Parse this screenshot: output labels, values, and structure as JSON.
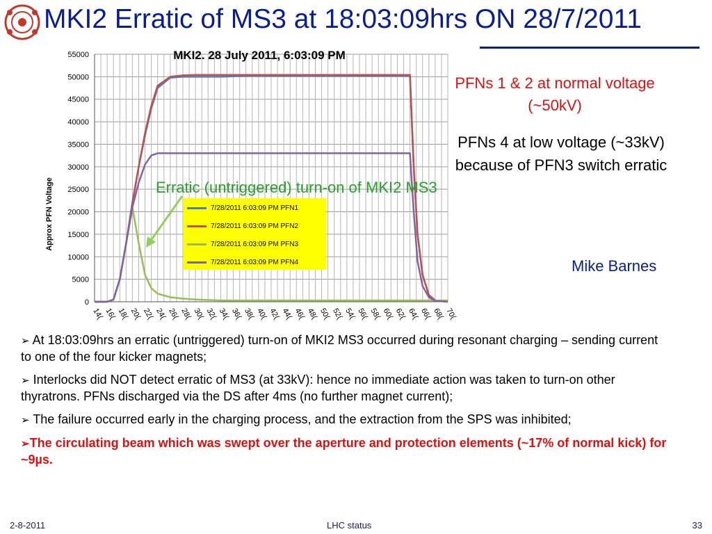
{
  "slide": {
    "title": "MKI2 Erratic of MS3 at 18:03:09hrs ON 28/7/2011",
    "logo_icon": "cern-lhc-logo-icon",
    "accent_color": "#0a1e8c"
  },
  "annotations": {
    "red_line1": "PFNs 1 & 2 at normal voltage",
    "red_line2": "(~50kV)",
    "black_line1": "PFNs 4 at low voltage (~33kV)",
    "black_line2": "because of PFN3 switch erratic",
    "green": "Erratic (untriggered) turn-on of MKI2 MS3",
    "author": "Mike Barnes"
  },
  "bullets": [
    {
      "text": "At 18:03:09hrs an erratic (untriggered) turn-on of MKI2 MS3 occurred during resonant charging – sending current to one of the four kicker magnets;"
    },
    {
      "text": "Interlocks did NOT detect erratic of MS3 (at 33kV): hence no immediate action was taken to turn-on other thyratrons.  PFNs discharged via the DS after 4ms (no further magnet current);"
    },
    {
      "text": "The failure occurred early in the charging  process, and the extraction from the SPS was inhibited;"
    },
    {
      "text": "The circulating beam which was swept over the aperture and protection elements (~17% of normal kick) for ~9µs."
    }
  ],
  "footer": {
    "date": "2-8-2011",
    "center": "LHC status",
    "page": "33"
  },
  "chart_data": {
    "type": "line",
    "title": "MKI2. 28 July 2011, 6:03:09 PM",
    "xlabel": "",
    "ylabel": "Approx PFN Voltage",
    "ylim": [
      0,
      55000
    ],
    "y_ticks": [
      0,
      5000,
      10000,
      15000,
      20000,
      25000,
      30000,
      35000,
      40000,
      45000,
      50000,
      55000
    ],
    "x_tick_labels": [
      "14(",
      "16(",
      "18(",
      "20(",
      "22(",
      "24(",
      "26(",
      "28(",
      "30(",
      "32(",
      "34(",
      "36(",
      "38(",
      "40(",
      "42(",
      "44(",
      "46(",
      "48(",
      "50(",
      "52(",
      "54(",
      "56(",
      "58(",
      "60(",
      "62(",
      "64(",
      "66(",
      "68(",
      "70("
    ],
    "grid": true,
    "legend_position": "center",
    "x": [
      0,
      1,
      1.5,
      2,
      2.5,
      3,
      3.5,
      4,
      4.5,
      5,
      6,
      7,
      8,
      10,
      12,
      15,
      20,
      24,
      25,
      25.3,
      25.6,
      26,
      26.5,
      27,
      28
    ],
    "series": [
      {
        "name": "7/28/2011  6:03:09 PM PFN1",
        "color": "#4a7ec0",
        "values": [
          0,
          0,
          500,
          5000,
          13000,
          22000,
          30000,
          37000,
          43000,
          47500,
          49800,
          50000,
          50000,
          50000,
          50200,
          50200,
          50200,
          50200,
          50200,
          30000,
          15000,
          6000,
          1500,
          300,
          0
        ]
      },
      {
        "name": "7/28/2011  6:03:09 PM PFN2",
        "color": "#c0504d",
        "values": [
          0,
          0,
          500,
          5000,
          13000,
          22000,
          30000,
          37500,
          43500,
          48000,
          50000,
          50300,
          50400,
          50400,
          50400,
          50400,
          50400,
          50400,
          50400,
          30000,
          15000,
          6000,
          1500,
          300,
          0
        ]
      },
      {
        "name": "7/28/2011  6:03:09 PM PFN3",
        "color": "#9bbb59",
        "values": [
          0,
          0,
          500,
          5000,
          13000,
          21000,
          13000,
          6000,
          3000,
          1800,
          1000,
          700,
          500,
          300,
          300,
          300,
          300,
          300,
          300,
          300,
          300,
          300,
          300,
          300,
          300
        ]
      },
      {
        "name": "7/28/2011  6:03:09 PM PFN4",
        "color": "#8064a2",
        "values": [
          0,
          0,
          500,
          5000,
          13000,
          21000,
          26500,
          30500,
          32500,
          33000,
          33000,
          33000,
          33000,
          33000,
          33000,
          33000,
          33000,
          33000,
          33000,
          20000,
          9000,
          3500,
          1000,
          200,
          0
        ]
      }
    ]
  }
}
